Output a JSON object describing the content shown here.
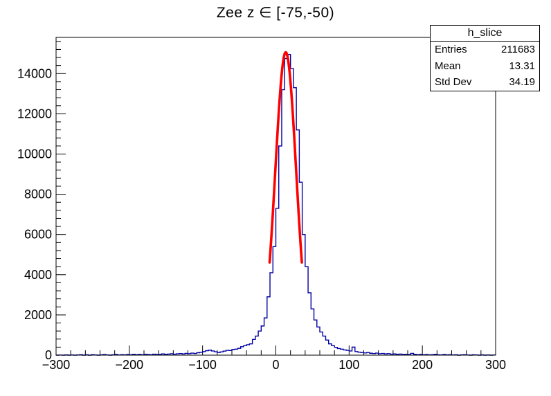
{
  "title": "Zee z ∈ [-75,-50)",
  "stats_box": {
    "title": "h_slice",
    "rows": [
      {
        "label": "Entries",
        "value": "211683"
      },
      {
        "label": "Mean",
        "value": "13.31"
      },
      {
        "label": "Std Dev",
        "value": "34.19"
      }
    ]
  },
  "colors": {
    "histogram": "#0000a2",
    "fit": "#ff0000",
    "axis": "#000000",
    "background": "#ffffff"
  },
  "chart_data": {
    "type": "bar",
    "subtype": "histogram-with-gaussian-fit",
    "title": "Zee z ∈ [-75,-50)",
    "xlabel": "",
    "ylabel": "",
    "xlim": [
      -300,
      300
    ],
    "ylim": [
      0,
      15800
    ],
    "grid": false,
    "legend": "none",
    "bin_start": -300,
    "bin_width": 4,
    "bins": [
      0,
      8,
      0,
      15,
      0,
      10,
      0,
      12,
      25,
      0,
      18,
      0,
      22,
      10,
      0,
      15,
      30,
      12,
      0,
      20,
      35,
      10,
      25,
      15,
      30,
      20,
      40,
      25,
      35,
      20,
      45,
      30,
      25,
      50,
      35,
      45,
      60,
      40,
      55,
      70,
      50,
      65,
      80,
      60,
      90,
      75,
      100,
      85,
      120,
      140,
      180,
      220,
      250,
      210,
      170,
      130,
      160,
      200,
      240,
      230,
      280,
      300,
      340,
      420,
      470,
      520,
      560,
      780,
      950,
      1200,
      1450,
      1850,
      2900,
      4100,
      5400,
      7300,
      10400,
      13200,
      14750,
      14950,
      14250,
      13300,
      11200,
      8600,
      6000,
      4400,
      3100,
      2300,
      1750,
      1400,
      1150,
      950,
      750,
      560,
      470,
      390,
      330,
      300,
      260,
      240,
      210,
      400,
      180,
      150,
      130,
      110,
      130,
      95,
      80,
      100,
      70,
      85,
      60,
      75,
      50,
      60,
      40,
      55,
      35,
      45,
      30,
      90,
      40,
      25,
      35,
      20,
      30,
      15,
      25,
      40,
      20,
      10,
      30,
      15,
      25,
      10,
      20,
      0,
      15,
      25,
      10,
      0,
      20,
      10,
      0,
      15,
      0,
      10,
      0,
      5
    ],
    "fit": {
      "model": "gaussian",
      "amplitude": 15060,
      "mean": 13.5,
      "sigma": 14.3,
      "draw_range": [
        -8.5,
        35.5
      ]
    },
    "x_tick_values": [
      -300,
      -200,
      -100,
      0,
      100,
      200,
      300
    ],
    "x_tick_labels": [
      "−300",
      "−200",
      "−100",
      "0",
      "100",
      "200",
      "300"
    ],
    "x_minor_step": 20,
    "y_tick_values": [
      0,
      2000,
      4000,
      6000,
      8000,
      10000,
      12000,
      14000
    ],
    "y_tick_labels": [
      "0",
      "2000",
      "4000",
      "6000",
      "8000",
      "10000",
      "12000",
      "14000"
    ],
    "y_minor_step": 400
  }
}
